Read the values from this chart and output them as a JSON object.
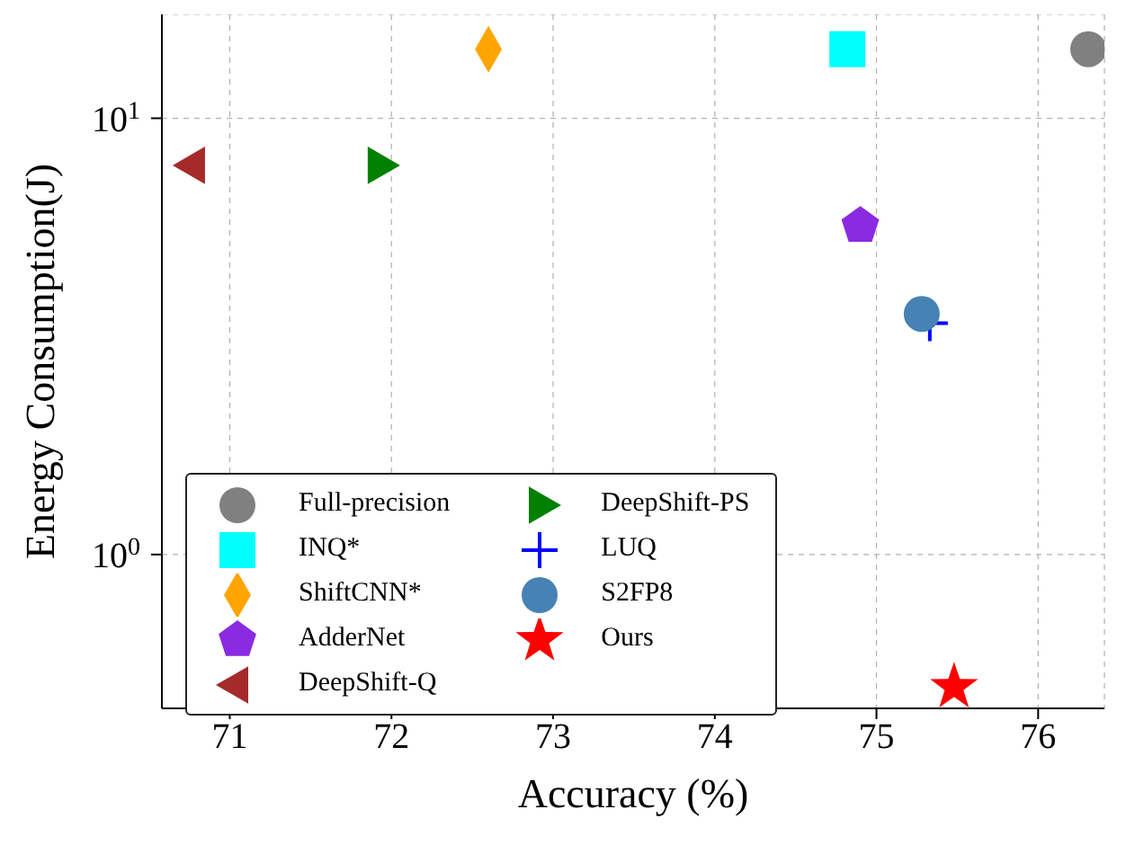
{
  "chart_data": {
    "type": "scatter",
    "xlabel": "Accuracy (%)",
    "ylabel": "Energy Consumption(J)",
    "log": "y",
    "grid": true,
    "legend": "bottom left",
    "xlim": [
      70.58,
      76.41
    ],
    "xticks": [
      71,
      72,
      73,
      74,
      75,
      76
    ],
    "ylim": [
      0.444,
      17.3
    ],
    "yticks": [
      {
        "value": 1,
        "label": "10$^{0}$"
      },
      {
        "value": 10,
        "label": "10$^{1}$"
      }
    ],
    "series": [
      {
        "name": "Full-precision",
        "color": "#808080",
        "marker": "circle",
        "x": [
          76.31
        ],
        "values": [
          14.4
        ]
      },
      {
        "name": "INQ*",
        "color": "#00ffff",
        "marker": "square",
        "x": [
          74.82
        ],
        "values": [
          14.4
        ]
      },
      {
        "name": "ShiftCNN*",
        "color": "#ffa500",
        "marker": "diamond",
        "x": [
          72.6
        ],
        "values": [
          14.4
        ]
      },
      {
        "name": "AdderNet",
        "color": "#8a2be2",
        "x": [
          74.9
        ],
        "values": [
          5.67
        ]
      },
      {
        "name": "DeepShift-Q",
        "color": "#a52a2a",
        "marker": "triangle-left",
        "x": [
          70.78
        ],
        "values": [
          7.8
        ]
      },
      {
        "name": "DeepShift-PS",
        "color": "#008000",
        "marker": "triangle-right",
        "x": [
          71.92
        ],
        "values": [
          7.8
        ]
      },
      {
        "name": "LUQ",
        "color": "#0000ff",
        "marker": "cross",
        "x": [
          75.33
        ],
        "values": [
          3.39
        ]
      },
      {
        "name": "S2FP8",
        "color": "#4682b4",
        "marker": "circle",
        "x": [
          75.28
        ],
        "values": [
          3.56
        ]
      },
      {
        "name": "Ours",
        "color": "#ff0000",
        "marker": "star",
        "x": [
          75.48
        ],
        "values": [
          0.497
        ]
      }
    ]
  }
}
